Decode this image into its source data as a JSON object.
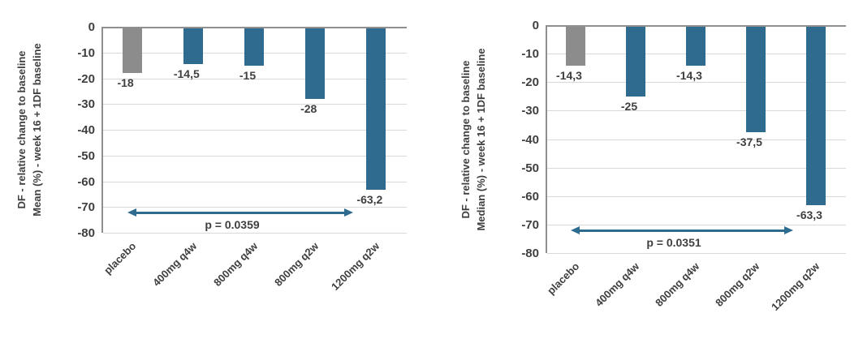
{
  "figure": {
    "background": "#ffffff"
  },
  "colors": {
    "placebo_bar": "#8c8c8c",
    "treatment_bar": "#2f6b8f",
    "arrow": "#2f6b8f",
    "text": "#3f3f3f",
    "gridline": "#d9d9d9",
    "axis": "#8f8f8f"
  },
  "chart_data": [
    {
      "type": "bar",
      "ylabel_line1": "DF - relative change to baseline",
      "ylabel_line2": "Mean (%) - week 16 + 1DF baseline",
      "categories": [
        "placebo",
        "400mg q4w",
        "800mg q4w",
        "800mg q2w",
        "1200mg q2w"
      ],
      "values": [
        -18,
        -14.5,
        -15,
        -28,
        -63.2
      ],
      "value_labels": [
        "-18",
        "-14,5",
        "-15",
        "-28",
        "-63,2"
      ],
      "ylim": [
        -80,
        0
      ],
      "ytick_interval": 10,
      "ytick_labels": [
        "0",
        "-10",
        "-20",
        "-30",
        "-40",
        "-50",
        "-60",
        "-70",
        "-80"
      ],
      "grid": true,
      "legend": "none",
      "annotation": {
        "text": "p = 0.0359",
        "from_category": "placebo",
        "to_category": "1200mg q2w",
        "y_level": -72
      }
    },
    {
      "type": "bar",
      "ylabel_line1": "DF - relative change to baseline",
      "ylabel_line2": "Median (%) - week 16 + 1DF baseline",
      "categories": [
        "placebo",
        "400mg q4w",
        "800mg q4w",
        "800mg q2w",
        "1200mg q2w"
      ],
      "values": [
        -14.3,
        -25,
        -14.3,
        -37.5,
        -63.3
      ],
      "value_labels": [
        "-14,3",
        "-25",
        "-14,3",
        "-37,5",
        "-63,3"
      ],
      "ylim": [
        -80,
        0
      ],
      "ytick_interval": 10,
      "ytick_labels": [
        "0",
        "-10",
        "-20",
        "-30",
        "-40",
        "-50",
        "-60",
        "-70",
        "-80"
      ],
      "grid": true,
      "legend": "none",
      "annotation": {
        "text": "p = 0.0351",
        "from_category": "placebo",
        "to_category": "1200mg q2w",
        "y_level": -72
      }
    }
  ]
}
